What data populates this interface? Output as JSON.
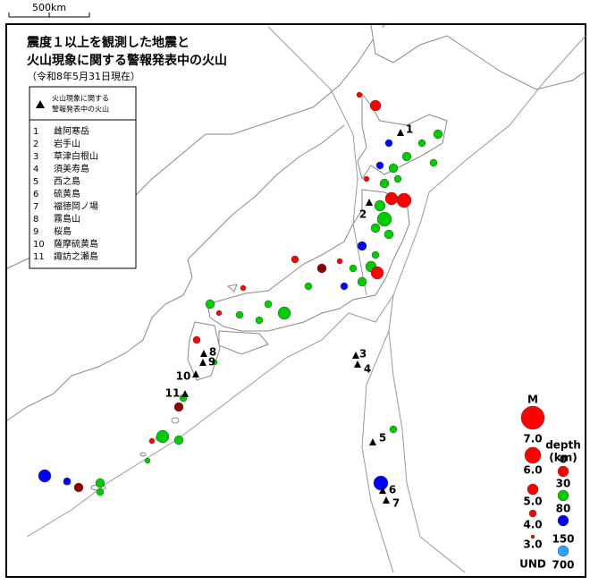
{
  "scale": "500km",
  "title": [
    "震度１以上を観測した地震と",
    "火山現象に関する警報発表中の火山"
  ],
  "date": "（令和8年5月31日現在）",
  "volcano_legend": {
    "title": [
      "火山現象に関する",
      "警報発表中の火山"
    ],
    "items": [
      {
        "number": "1",
        "name": "雌阿寒岳"
      },
      {
        "number": "2",
        "name": "岩手山"
      },
      {
        "number": "3",
        "name": "草津白根山"
      },
      {
        "number": "4",
        "name": "須美寿島"
      },
      {
        "number": "5",
        "name": "西之島"
      },
      {
        "number": "6",
        "name": "硫黄島"
      },
      {
        "number": "7",
        "name": "福徳岡ノ場"
      },
      {
        "number": "8",
        "name": "霧島山"
      },
      {
        "number": "9",
        "name": "桜島"
      },
      {
        "number": "10",
        "name": "薩摩硫黄島"
      },
      {
        "number": "11",
        "name": "諏訪之瀬島"
      }
    ]
  },
  "magnitude_legend": {
    "title": "M",
    "labels": [
      "7.0",
      "6.0",
      "5.0",
      "4.0",
      "3.0",
      "UND"
    ]
  },
  "depth_legend": {
    "title": [
      "depth",
      "(km)"
    ],
    "labels": [
      "0",
      "30",
      "80",
      "150",
      "700"
    ]
  }
}
